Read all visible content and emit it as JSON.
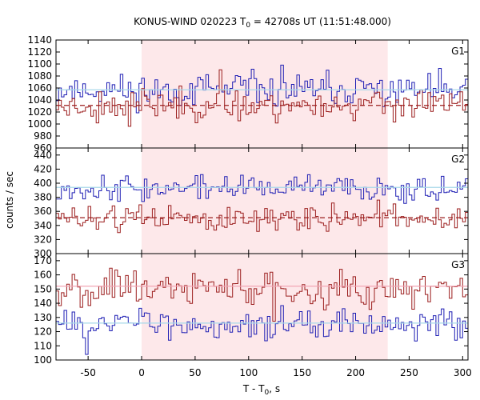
{
  "chart_data": {
    "type": "line",
    "title_main": "KONUS-WIND 020223 T",
    "title_sub": "0",
    "title_rest": " = 42708s UT (11:51:48.000)",
    "xlabel_main": "T - T",
    "xlabel_sub": "0",
    "xlabel_rest": ", s",
    "ylabel": "counts / sec",
    "xlim": [
      -80,
      305
    ],
    "xticks": [
      -50,
      0,
      50,
      100,
      150,
      200,
      250,
      300
    ],
    "highlight": {
      "x0": 0,
      "x1": 230,
      "color": "#fde8ea"
    },
    "grid": false,
    "panels": [
      {
        "label": "G1",
        "ylim": [
          960,
          1140
        ],
        "yticks": [
          960,
          980,
          1000,
          1020,
          1040,
          1060,
          1080,
          1100,
          1120,
          1140
        ],
        "series": [
          {
            "color": "#1f1fb4",
            "mean": 1056,
            "amp": 17,
            "seed": 11,
            "fit": {
              "value": 1057,
              "color": "#a8d8ea",
              "style": "solid"
            }
          },
          {
            "color": "#9c1f1f",
            "mean": 1032,
            "amp": 16,
            "seed": 23,
            "fit": {
              "value": 1031,
              "color": "#9c1f1f",
              "style": "dashed"
            }
          }
        ]
      },
      {
        "label": "G2",
        "ylim": [
          300,
          450
        ],
        "yticks": [
          300,
          320,
          340,
          360,
          380,
          400,
          420,
          440
        ],
        "series": [
          {
            "color": "#1f1fb4",
            "mean": 393,
            "amp": 11,
            "seed": 37,
            "fit": {
              "value": 394,
              "color": "#a8d8ea",
              "style": "solid"
            }
          },
          {
            "color": "#9c1f1f",
            "mean": 350,
            "amp": 11,
            "seed": 51,
            "fit": {
              "value": 351,
              "color": "#9c1f1f",
              "style": "dashed"
            }
          }
        ]
      },
      {
        "label": "G3",
        "ylim": [
          100,
          175
        ],
        "yticks": [
          100,
          110,
          120,
          130,
          140,
          150,
          160,
          170
        ],
        "series": [
          {
            "color": "#9c1f1f",
            "mean": 151,
            "amp": 8,
            "seed": 67,
            "fit": {
              "value": 152,
              "color": "#f2a6b4",
              "style": "solid"
            }
          },
          {
            "color": "#1f1fb4",
            "mean": 125,
            "amp": 6,
            "seed": 83,
            "fit": {
              "value": 126,
              "color": "#a8d8ea",
              "style": "solid"
            }
          }
        ]
      }
    ]
  }
}
